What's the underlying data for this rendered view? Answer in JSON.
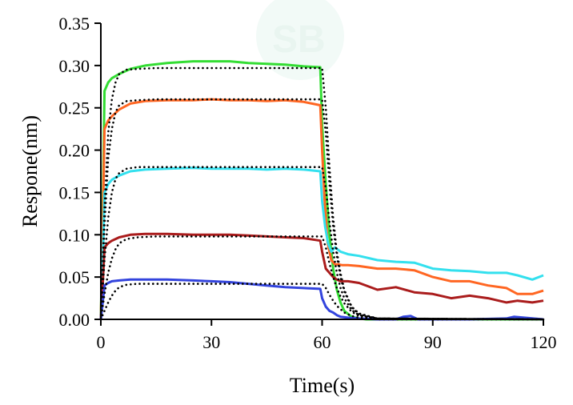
{
  "chart_data": {
    "type": "line",
    "xlabel": "Time(s)",
    "ylabel": "Respone(nm)",
    "xlim": [
      0,
      120
    ],
    "ylim": [
      0,
      0.35
    ],
    "xticks": [
      0,
      30,
      60,
      90,
      120
    ],
    "xtick_labels": [
      "0",
      "30",
      "60",
      "90",
      "120"
    ],
    "yticks": [
      0,
      0.05,
      0.1,
      0.15,
      0.2,
      0.25,
      0.3,
      0.35
    ],
    "ytick_labels": [
      "0.00",
      "0.05",
      "0.10",
      "0.15",
      "0.20",
      "0.25",
      "0.30",
      "0.35"
    ],
    "grid": false,
    "legend": "none",
    "series": [
      {
        "color": "#33dd33",
        "x": [
          0,
          0.5,
          1,
          2,
          3,
          5,
          8,
          12,
          18,
          25,
          30,
          35,
          40,
          45,
          50,
          55,
          59.5,
          60,
          61,
          62,
          63,
          64,
          65,
          66,
          68,
          70,
          72,
          120
        ],
        "y": [
          0,
          0.12,
          0.27,
          0.28,
          0.285,
          0.29,
          0.296,
          0.3,
          0.303,
          0.305,
          0.305,
          0.305,
          0.303,
          0.302,
          0.301,
          0.299,
          0.298,
          0.23,
          0.16,
          0.1,
          0.06,
          0.035,
          0.02,
          0.01,
          0.003,
          0.001,
          0,
          0
        ]
      },
      {
        "color": "#ff6622",
        "x": [
          0,
          0.5,
          1,
          2,
          3,
          5,
          8,
          12,
          18,
          25,
          30,
          35,
          40,
          45,
          50,
          55,
          59.5,
          60,
          60.7,
          61.5,
          62.5,
          63.5,
          64.5,
          65.5,
          67,
          70,
          75,
          80,
          85,
          90,
          95,
          100,
          105,
          110,
          113,
          117,
          120
        ],
        "y": [
          0,
          0.1,
          0.225,
          0.235,
          0.24,
          0.248,
          0.255,
          0.258,
          0.259,
          0.259,
          0.26,
          0.259,
          0.259,
          0.258,
          0.259,
          0.257,
          0.253,
          0.2,
          0.14,
          0.09,
          0.07,
          0.065,
          0.065,
          0.064,
          0.064,
          0.063,
          0.06,
          0.06,
          0.058,
          0.05,
          0.045,
          0.045,
          0.04,
          0.037,
          0.03,
          0.03,
          0.034
        ]
      },
      {
        "color": "#33e0ee",
        "x": [
          0,
          0.5,
          1,
          2,
          3,
          5,
          8,
          12,
          18,
          25,
          30,
          35,
          40,
          45,
          50,
          55,
          59.5,
          60,
          60.8,
          61.6,
          62.5,
          63.5,
          65,
          67,
          70,
          75,
          80,
          85,
          90,
          95,
          100,
          105,
          110,
          113,
          117,
          120
        ],
        "y": [
          0,
          0.06,
          0.15,
          0.16,
          0.165,
          0.17,
          0.175,
          0.177,
          0.178,
          0.179,
          0.178,
          0.178,
          0.178,
          0.177,
          0.178,
          0.177,
          0.175,
          0.14,
          0.11,
          0.09,
          0.08,
          0.085,
          0.08,
          0.077,
          0.075,
          0.07,
          0.068,
          0.067,
          0.06,
          0.058,
          0.057,
          0.055,
          0.055,
          0.052,
          0.047,
          0.052
        ]
      },
      {
        "color": "#aa1c1c",
        "x": [
          0,
          0.5,
          1,
          2,
          3,
          5,
          8,
          12,
          18,
          25,
          30,
          35,
          40,
          45,
          50,
          55,
          59.5,
          60,
          61,
          62,
          63,
          64,
          65,
          67,
          70,
          75,
          80,
          85,
          90,
          95,
          100,
          105,
          110,
          113,
          117,
          120
        ],
        "y": [
          0,
          0.04,
          0.085,
          0.09,
          0.093,
          0.097,
          0.1,
          0.101,
          0.101,
          0.1,
          0.1,
          0.1,
          0.099,
          0.098,
          0.097,
          0.096,
          0.093,
          0.08,
          0.06,
          0.055,
          0.05,
          0.047,
          0.045,
          0.045,
          0.043,
          0.035,
          0.038,
          0.032,
          0.03,
          0.025,
          0.028,
          0.025,
          0.02,
          0.022,
          0.02,
          0.022
        ]
      },
      {
        "color": "#3344dd",
        "x": [
          0,
          0.5,
          1,
          2,
          3,
          5,
          8,
          12,
          18,
          25,
          30,
          35,
          40,
          45,
          50,
          55,
          59.5,
          60,
          61,
          62,
          63,
          64,
          65,
          67,
          70,
          75,
          80,
          82,
          84,
          86,
          90,
          100,
          110,
          112,
          120
        ],
        "y": [
          0,
          0.02,
          0.04,
          0.043,
          0.045,
          0.046,
          0.047,
          0.047,
          0.047,
          0.046,
          0.045,
          0.044,
          0.042,
          0.04,
          0.038,
          0.037,
          0.036,
          0.025,
          0.015,
          0.01,
          0.008,
          0.005,
          0.003,
          0.002,
          0.001,
          0,
          0,
          0.003,
          0.004,
          0,
          0,
          0,
          0.001,
          0.003,
          0
        ]
      }
    ],
    "fits": [
      {
        "color": "#000000",
        "x": [
          0,
          1,
          2,
          3,
          4,
          5,
          7,
          10,
          15,
          20,
          30,
          40,
          50,
          60,
          61,
          62,
          63,
          64,
          65,
          66,
          68,
          70,
          75,
          120
        ],
        "y": [
          0,
          0.13,
          0.22,
          0.26,
          0.28,
          0.29,
          0.295,
          0.296,
          0.297,
          0.297,
          0.297,
          0.297,
          0.297,
          0.297,
          0.25,
          0.18,
          0.12,
          0.08,
          0.055,
          0.035,
          0.015,
          0.007,
          0.001,
          0
        ]
      },
      {
        "color": "#000000",
        "x": [
          0,
          1,
          2,
          3,
          4,
          5,
          7,
          10,
          15,
          20,
          30,
          40,
          50,
          60,
          61,
          62,
          63,
          64,
          65,
          66,
          68,
          70,
          75,
          120
        ],
        "y": [
          0,
          0.11,
          0.19,
          0.225,
          0.245,
          0.253,
          0.258,
          0.259,
          0.26,
          0.26,
          0.26,
          0.26,
          0.26,
          0.26,
          0.22,
          0.16,
          0.11,
          0.075,
          0.05,
          0.033,
          0.014,
          0.006,
          0.001,
          0
        ]
      },
      {
        "color": "#000000",
        "x": [
          0,
          1,
          2,
          3,
          4,
          5,
          7,
          10,
          15,
          20,
          30,
          40,
          50,
          60,
          61,
          62,
          63,
          64,
          65,
          66,
          68,
          70,
          75,
          120
        ],
        "y": [
          0,
          0.07,
          0.12,
          0.15,
          0.166,
          0.173,
          0.178,
          0.18,
          0.18,
          0.18,
          0.18,
          0.18,
          0.18,
          0.18,
          0.155,
          0.115,
          0.08,
          0.055,
          0.037,
          0.025,
          0.011,
          0.005,
          0.001,
          0
        ]
      },
      {
        "color": "#000000",
        "x": [
          0,
          1,
          2,
          3,
          4,
          5,
          7,
          10,
          15,
          20,
          30,
          40,
          50,
          60,
          61,
          62,
          63,
          64,
          65,
          66,
          68,
          70,
          75,
          120
        ],
        "y": [
          0,
          0.03,
          0.055,
          0.072,
          0.083,
          0.09,
          0.095,
          0.097,
          0.098,
          0.098,
          0.098,
          0.098,
          0.098,
          0.098,
          0.085,
          0.066,
          0.05,
          0.037,
          0.027,
          0.019,
          0.009,
          0.004,
          0.001,
          0
        ]
      },
      {
        "color": "#000000",
        "x": [
          0,
          1,
          2,
          3,
          4,
          5,
          7,
          10,
          15,
          20,
          30,
          40,
          50,
          60,
          61,
          62,
          63,
          64,
          65,
          66,
          68,
          70,
          75,
          120
        ],
        "y": [
          0,
          0.01,
          0.02,
          0.028,
          0.034,
          0.038,
          0.041,
          0.042,
          0.042,
          0.042,
          0.042,
          0.042,
          0.042,
          0.042,
          0.037,
          0.029,
          0.022,
          0.016,
          0.012,
          0.008,
          0.004,
          0.002,
          0,
          0
        ]
      }
    ]
  }
}
